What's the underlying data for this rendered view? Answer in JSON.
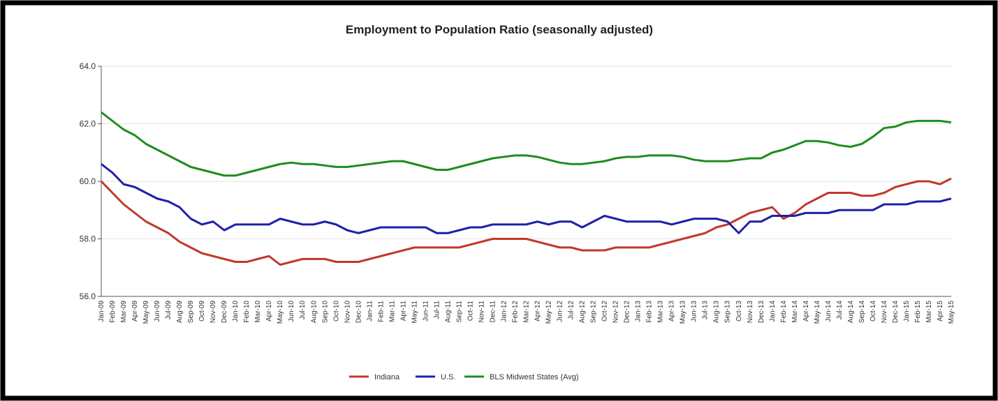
{
  "chart_data": {
    "type": "line",
    "title": "Employment to Population Ratio (seasonally adjusted)",
    "categories": [
      "Jan-09",
      "Feb-09",
      "Mar-09",
      "Apr-09",
      "May-09",
      "Jun-09",
      "Jul-09",
      "Aug-09",
      "Sep-09",
      "Oct-09",
      "Nov-09",
      "Dec-09",
      "Jan-10",
      "Feb-10",
      "Mar-10",
      "Apr-10",
      "May-10",
      "Jun-10",
      "Jul-10",
      "Aug-10",
      "Sep-10",
      "Oct-10",
      "Nov-10",
      "Dec-10",
      "Jan-11",
      "Feb-11",
      "Mar-11",
      "Apr-11",
      "May-11",
      "Jun-11",
      "Jul-11",
      "Aug-11",
      "Sep-11",
      "Oct-11",
      "Nov-11",
      "Dec-11",
      "Jan-12",
      "Feb-12",
      "Mar-12",
      "Apr-12",
      "May-12",
      "Jun-12",
      "Jul-12",
      "Aug-12",
      "Sep-12",
      "Oct-12",
      "Nov-12",
      "Dec-12",
      "Jan-13",
      "Feb-13",
      "Mar-13",
      "Apr-13",
      "May-13",
      "Jun-13",
      "Jul-13",
      "Aug-13",
      "Sep-13",
      "Oct-13",
      "Nov-13",
      "Dec-13",
      "Jan-14",
      "Feb-14",
      "Mar-14",
      "Apr-14",
      "May-14",
      "Jun-14",
      "Jul-14",
      "Aug-14",
      "Sep-14",
      "Oct-14",
      "Nov-14",
      "Dec-14",
      "Jan-15",
      "Feb-15",
      "Mar-15",
      "Apr-15",
      "May-15"
    ],
    "series": [
      {
        "name": "Indiana",
        "color": "#c0392b",
        "values": [
          60.0,
          59.6,
          59.2,
          58.9,
          58.6,
          58.4,
          58.2,
          57.9,
          57.7,
          57.5,
          57.4,
          57.3,
          57.2,
          57.2,
          57.3,
          57.4,
          57.1,
          57.2,
          57.3,
          57.3,
          57.3,
          57.2,
          57.2,
          57.2,
          57.3,
          57.4,
          57.5,
          57.6,
          57.7,
          57.7,
          57.7,
          57.7,
          57.7,
          57.8,
          57.9,
          58.0,
          58.0,
          58.0,
          58.0,
          57.9,
          57.8,
          57.7,
          57.7,
          57.6,
          57.6,
          57.6,
          57.7,
          57.7,
          57.7,
          57.7,
          57.8,
          57.9,
          58.0,
          58.1,
          58.2,
          58.4,
          58.5,
          58.7,
          58.9,
          59.0,
          59.1,
          58.7,
          58.9,
          59.2,
          59.4,
          59.6,
          59.6,
          59.6,
          59.5,
          59.5,
          59.6,
          59.8,
          59.9,
          60.0,
          60.0,
          59.9,
          60.1
        ]
      },
      {
        "name": "U.S.",
        "color": "#1f1fa8",
        "values": [
          60.6,
          60.3,
          59.9,
          59.8,
          59.6,
          59.4,
          59.3,
          59.1,
          58.7,
          58.5,
          58.6,
          58.3,
          58.5,
          58.5,
          58.5,
          58.5,
          58.7,
          58.6,
          58.5,
          58.5,
          58.6,
          58.5,
          58.3,
          58.2,
          58.3,
          58.4,
          58.4,
          58.4,
          58.4,
          58.4,
          58.2,
          58.2,
          58.3,
          58.4,
          58.4,
          58.5,
          58.5,
          58.5,
          58.5,
          58.6,
          58.5,
          58.6,
          58.6,
          58.4,
          58.6,
          58.8,
          58.7,
          58.6,
          58.6,
          58.6,
          58.6,
          58.5,
          58.6,
          58.7,
          58.7,
          58.7,
          58.6,
          58.2,
          58.6,
          58.6,
          58.8,
          58.8,
          58.8,
          58.9,
          58.9,
          58.9,
          59.0,
          59.0,
          59.0,
          59.0,
          59.2,
          59.2,
          59.2,
          59.3,
          59.3,
          59.3,
          59.4
        ]
      },
      {
        "name": "BLS Midwest States (Avg)",
        "color": "#1e8c1e",
        "values": [
          62.4,
          62.1,
          61.8,
          61.6,
          61.3,
          61.1,
          60.9,
          60.7,
          60.5,
          60.4,
          60.3,
          60.2,
          60.2,
          60.3,
          60.4,
          60.5,
          60.6,
          60.65,
          60.6,
          60.6,
          60.55,
          60.5,
          60.5,
          60.55,
          60.6,
          60.65,
          60.7,
          60.7,
          60.6,
          60.5,
          60.4,
          60.4,
          60.5,
          60.6,
          60.7,
          60.8,
          60.85,
          60.9,
          60.9,
          60.85,
          60.75,
          60.65,
          60.6,
          60.6,
          60.65,
          60.7,
          60.8,
          60.85,
          60.85,
          60.9,
          60.9,
          60.9,
          60.85,
          60.75,
          60.7,
          60.7,
          60.7,
          60.75,
          60.8,
          60.8,
          61.0,
          61.1,
          61.25,
          61.4,
          61.4,
          61.35,
          61.25,
          61.2,
          61.3,
          61.55,
          61.85,
          61.9,
          62.05,
          62.1,
          62.1,
          62.1,
          62.05
        ]
      }
    ],
    "ylim": [
      56,
      64
    ],
    "yticks": [
      {
        "value": 56,
        "label": "56.0"
      },
      {
        "value": 58,
        "label": "58.0"
      },
      {
        "value": 60,
        "label": "60.0"
      },
      {
        "value": 62,
        "label": "62.0"
      },
      {
        "value": 64,
        "label": "64.0"
      }
    ],
    "grid": true,
    "legend": "bottom"
  }
}
